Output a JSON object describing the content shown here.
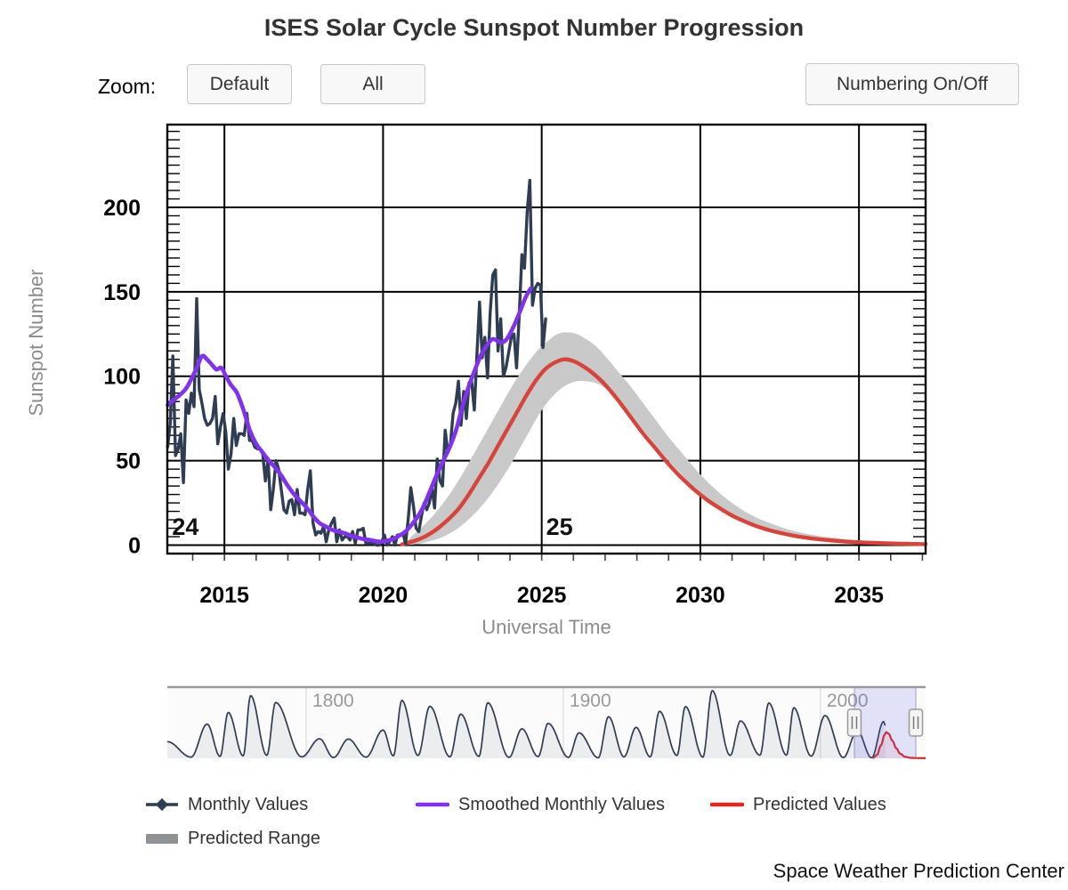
{
  "title": "ISES Solar Cycle Sunspot Number Progression",
  "toolbar": {
    "zoom_label": "Zoom:",
    "default_label": "Default",
    "all_label": "All",
    "numbering_label": "Numbering On/Off"
  },
  "credit": "Space Weather Prediction Center",
  "legend": {
    "items": [
      {
        "label": "Monthly Values",
        "type": "line-diamond",
        "color": "#2e3d54"
      },
      {
        "label": "Smoothed Monthly Values",
        "type": "line",
        "color": "#8133eb"
      },
      {
        "label": "Predicted Values",
        "type": "line",
        "color": "#e0281e"
      },
      {
        "label": "Predicted Range",
        "type": "box",
        "color": "#8f9295"
      }
    ]
  },
  "chart_data": {
    "type": "line",
    "title": "ISES Solar Cycle Sunspot Number Progression",
    "colors": {
      "monthly": "#2e3d54",
      "smoothed": "#8133eb",
      "predicted": "#d6453c",
      "predicted_navigator": "#e0281e",
      "range_band": "#c9c9c9",
      "selection": "rgba(95,95,235,0.16)",
      "selection_edge": "rgba(100,100,200,0.4)"
    },
    "x_axis": {
      "title": "Universal Time",
      "range": [
        2013.2,
        2037.1
      ],
      "ticks": [
        2015,
        2020,
        2025,
        2030,
        2035
      ],
      "minor_step": 1
    },
    "y_axis": {
      "title": "Sunspot Number",
      "range": [
        -5,
        249
      ],
      "ticks": [
        0,
        50,
        100,
        150,
        200
      ],
      "minor_step": 5
    },
    "annotations": [
      {
        "label": "24",
        "x": 2013.35,
        "y": 6.1
      },
      {
        "label": "25",
        "x": 2025.14,
        "y": 6.1
      }
    ],
    "series": {
      "monthly": {
        "name": "Monthly Values",
        "start": 2013.2083,
        "step": 0.0833333,
        "values": [
          58,
          72,
          112,
          53,
          57,
          66,
          37,
          86,
          78,
          90,
          82,
          146,
          92,
          84,
          75,
          71,
          72,
          75,
          88,
          60,
          70,
          78,
          67,
          45,
          54,
          75,
          59,
          66,
          66,
          65,
          78,
          62,
          62,
          58,
          57,
          57,
          54,
          38,
          51,
          21,
          33,
          50,
          45,
          33,
          21,
          19,
          26,
          27,
          18,
          33,
          19,
          19,
          18,
          33,
          44,
          13,
          6,
          8,
          7,
          11,
          2,
          9,
          13,
          16,
          2,
          9,
          3,
          5,
          5,
          3,
          8,
          1,
          9,
          9,
          10,
          1,
          1,
          1,
          1,
          0,
          0,
          2,
          6,
          0,
          2,
          5,
          0,
          6,
          6,
          7,
          1,
          15,
          34,
          23,
          10,
          8,
          17,
          25,
          21,
          25,
          34,
          22,
          51,
          38,
          35,
          68,
          55,
          60,
          78,
          84,
          97,
          71,
          91,
          75,
          96,
          97,
          80,
          113,
          144,
          111,
          123,
          99,
          137,
          160,
          163,
          115,
          134,
          100,
          105,
          114,
          123,
          125,
          105,
          136,
          172,
          164,
          197,
          216,
          142,
          152,
          155,
          154,
          117,
          134
        ]
      },
      "smoothed": {
        "name": "Smoothed Monthly Values",
        "points": [
          [
            2013.21,
            83
          ],
          [
            2013.4,
            86
          ],
          [
            2013.6,
            89
          ],
          [
            2013.8,
            93
          ],
          [
            2014.0,
            100
          ],
          [
            2014.15,
            106
          ],
          [
            2014.3,
            112
          ],
          [
            2014.45,
            110
          ],
          [
            2014.6,
            107
          ],
          [
            2014.75,
            104
          ],
          [
            2014.9,
            105
          ],
          [
            2015.05,
            100
          ],
          [
            2015.2,
            95
          ],
          [
            2015.4,
            90
          ],
          [
            2015.6,
            80
          ],
          [
            2015.8,
            68
          ],
          [
            2016.0,
            60
          ],
          [
            2016.2,
            55
          ],
          [
            2016.4,
            50
          ],
          [
            2016.6,
            46
          ],
          [
            2016.8,
            41
          ],
          [
            2017.0,
            35
          ],
          [
            2017.2,
            30
          ],
          [
            2017.4,
            26
          ],
          [
            2017.6,
            22
          ],
          [
            2017.8,
            17
          ],
          [
            2018.0,
            13
          ],
          [
            2018.2,
            11
          ],
          [
            2018.4,
            9
          ],
          [
            2018.6,
            8
          ],
          [
            2018.8,
            7
          ],
          [
            2019.0,
            5.5
          ],
          [
            2019.2,
            4.5
          ],
          [
            2019.4,
            3.5
          ],
          [
            2019.6,
            3
          ],
          [
            2019.8,
            2.2
          ],
          [
            2019.95,
            2
          ],
          [
            2020.1,
            2.5
          ],
          [
            2020.3,
            3.5
          ],
          [
            2020.5,
            5.5
          ],
          [
            2020.7,
            8
          ],
          [
            2020.9,
            12
          ],
          [
            2021.1,
            17
          ],
          [
            2021.3,
            24
          ],
          [
            2021.5,
            33
          ],
          [
            2021.7,
            42
          ],
          [
            2021.9,
            50
          ],
          [
            2022.1,
            58
          ],
          [
            2022.3,
            68
          ],
          [
            2022.5,
            82
          ],
          [
            2022.7,
            94
          ],
          [
            2022.9,
            104
          ],
          [
            2023.1,
            113
          ],
          [
            2023.3,
            119
          ],
          [
            2023.45,
            122
          ],
          [
            2023.6,
            121
          ],
          [
            2023.75,
            120
          ],
          [
            2023.9,
            122
          ],
          [
            2024.05,
            127
          ],
          [
            2024.2,
            133
          ],
          [
            2024.35,
            140
          ],
          [
            2024.5,
            147
          ],
          [
            2024.65,
            152
          ]
        ]
      },
      "predicted": {
        "name": "Predicted Values",
        "points": [
          [
            2020.6,
            0.5
          ],
          [
            2020.9,
            2
          ],
          [
            2021.2,
            4
          ],
          [
            2021.5,
            7
          ],
          [
            2021.8,
            11
          ],
          [
            2022.1,
            16
          ],
          [
            2022.4,
            22
          ],
          [
            2022.7,
            30
          ],
          [
            2023.0,
            39
          ],
          [
            2023.3,
            48
          ],
          [
            2023.6,
            58
          ],
          [
            2023.9,
            68
          ],
          [
            2024.2,
            78
          ],
          [
            2024.5,
            88
          ],
          [
            2024.8,
            97
          ],
          [
            2025.1,
            104
          ],
          [
            2025.4,
            108
          ],
          [
            2025.7,
            110
          ],
          [
            2026.0,
            109
          ],
          [
            2026.3,
            106
          ],
          [
            2026.6,
            102
          ],
          [
            2027.0,
            95
          ],
          [
            2027.4,
            86
          ],
          [
            2027.8,
            76
          ],
          [
            2028.2,
            66
          ],
          [
            2028.6,
            57
          ],
          [
            2029.0,
            48
          ],
          [
            2029.4,
            40
          ],
          [
            2029.8,
            33
          ],
          [
            2030.2,
            27
          ],
          [
            2030.6,
            22
          ],
          [
            2031.0,
            17.5
          ],
          [
            2031.4,
            14
          ],
          [
            2031.8,
            11
          ],
          [
            2032.2,
            8.7
          ],
          [
            2032.6,
            6.9
          ],
          [
            2033.0,
            5.4
          ],
          [
            2033.5,
            4
          ],
          [
            2034.0,
            3
          ],
          [
            2034.5,
            2.2
          ],
          [
            2035.0,
            1.7
          ],
          [
            2035.5,
            1.3
          ],
          [
            2036.0,
            1
          ],
          [
            2036.5,
            0.8
          ],
          [
            2037.1,
            0.6
          ]
        ]
      },
      "predicted_range": {
        "name": "Predicted Range",
        "points": [
          [
            2020.7,
            0,
            1.5
          ],
          [
            2021.0,
            0.5,
            7
          ],
          [
            2021.3,
            1.5,
            12
          ],
          [
            2021.6,
            3,
            18
          ],
          [
            2021.9,
            5,
            25
          ],
          [
            2022.2,
            8,
            33
          ],
          [
            2022.5,
            12,
            42
          ],
          [
            2022.8,
            17,
            52
          ],
          [
            2023.1,
            23,
            62
          ],
          [
            2023.4,
            30,
            72
          ],
          [
            2023.7,
            38,
            82
          ],
          [
            2024.0,
            47,
            92
          ],
          [
            2024.3,
            57,
            101
          ],
          [
            2024.6,
            67,
            109
          ],
          [
            2024.9,
            77,
            116
          ],
          [
            2025.2,
            85,
            121
          ],
          [
            2025.5,
            91,
            125
          ],
          [
            2025.8,
            95,
            126
          ],
          [
            2026.1,
            97,
            125
          ],
          [
            2026.4,
            97,
            122
          ],
          [
            2026.7,
            96,
            118
          ],
          [
            2027.0,
            93,
            112
          ],
          [
            2027.4,
            87,
            103
          ],
          [
            2027.8,
            78,
            94
          ],
          [
            2028.2,
            68,
            84
          ],
          [
            2028.6,
            59,
            74
          ],
          [
            2029.0,
            50,
            64
          ],
          [
            2029.4,
            42,
            55
          ],
          [
            2029.8,
            34,
            46
          ],
          [
            2030.2,
            28,
            38
          ],
          [
            2030.6,
            22,
            31
          ],
          [
            2031.0,
            17.5,
            25
          ],
          [
            2031.4,
            13.5,
            20
          ],
          [
            2031.8,
            10.5,
            16
          ],
          [
            2032.2,
            8,
            13
          ],
          [
            2032.6,
            6.2,
            10.3
          ],
          [
            2033.0,
            4.8,
            8.2
          ],
          [
            2033.5,
            3.4,
            6.2
          ],
          [
            2034.0,
            2.5,
            4.8
          ],
          [
            2034.5,
            1.8,
            3.7
          ],
          [
            2035.0,
            1.3,
            2.9
          ],
          [
            2035.5,
            1,
            2.3
          ],
          [
            2036.0,
            0.7,
            1.9
          ],
          [
            2036.5,
            0.5,
            1.5
          ],
          [
            2037.1,
            0.4,
            1.3
          ]
        ]
      }
    },
    "navigator": {
      "range": [
        1746,
        2040.9
      ],
      "value_max": 285,
      "year_ticks": [
        1800,
        1900,
        2000
      ],
      "selection": [
        2013.2,
        2037.1
      ],
      "historical_points": [
        [
          1746,
          70
        ],
        [
          1755.2,
          5
        ],
        [
          1761.5,
          144
        ],
        [
          1766.5,
          8
        ],
        [
          1769.7,
          193
        ],
        [
          1775.5,
          10
        ],
        [
          1778.4,
          264
        ],
        [
          1784.7,
          12
        ],
        [
          1788.1,
          235
        ],
        [
          1798.3,
          6
        ],
        [
          1805.2,
          82
        ],
        [
          1810.6,
          3
        ],
        [
          1816.4,
          81
        ],
        [
          1823.3,
          5
        ],
        [
          1829.9,
          119
        ],
        [
          1833.9,
          10
        ],
        [
          1837.2,
          244
        ],
        [
          1843.5,
          12
        ],
        [
          1848.1,
          219
        ],
        [
          1855.9,
          6
        ],
        [
          1860.1,
          186
        ],
        [
          1867.2,
          8
        ],
        [
          1870.6,
          234
        ],
        [
          1878.9,
          4
        ],
        [
          1883.9,
          124
        ],
        [
          1890.2,
          7
        ],
        [
          1894.1,
          147
        ],
        [
          1902.0,
          4
        ],
        [
          1906.1,
          107
        ],
        [
          1913.6,
          2
        ],
        [
          1917.6,
          175
        ],
        [
          1923.6,
          6
        ],
        [
          1928.3,
          130
        ],
        [
          1933.8,
          6
        ],
        [
          1937.4,
          198
        ],
        [
          1944.2,
          12
        ],
        [
          1947.5,
          218
        ],
        [
          1954.3,
          5
        ],
        [
          1957.9,
          285
        ],
        [
          1964.9,
          12
        ],
        [
          1968.9,
          157
        ],
        [
          1976.5,
          13
        ],
        [
          1979.9,
          233
        ],
        [
          1986.8,
          13
        ],
        [
          1989.6,
          213
        ],
        [
          1996.4,
          9
        ],
        [
          2001.8,
          180
        ],
        [
          2008.9,
          3
        ],
        [
          2014.3,
          116
        ],
        [
          2019.9,
          2
        ],
        [
          2024.6,
          155
        ],
        [
          2025.2,
          138
        ]
      ],
      "predicted_points": [
        [
          2020.3,
          0.5
        ],
        [
          2022,
          14
        ],
        [
          2023.5,
          54
        ],
        [
          2025.0,
          100
        ],
        [
          2025.6,
          110
        ],
        [
          2026.5,
          104
        ],
        [
          2028,
          74
        ],
        [
          2029.5,
          42
        ],
        [
          2031,
          19
        ],
        [
          2033,
          6
        ],
        [
          2035,
          2
        ],
        [
          2037,
          1
        ],
        [
          2040.9,
          0.5
        ]
      ]
    }
  }
}
